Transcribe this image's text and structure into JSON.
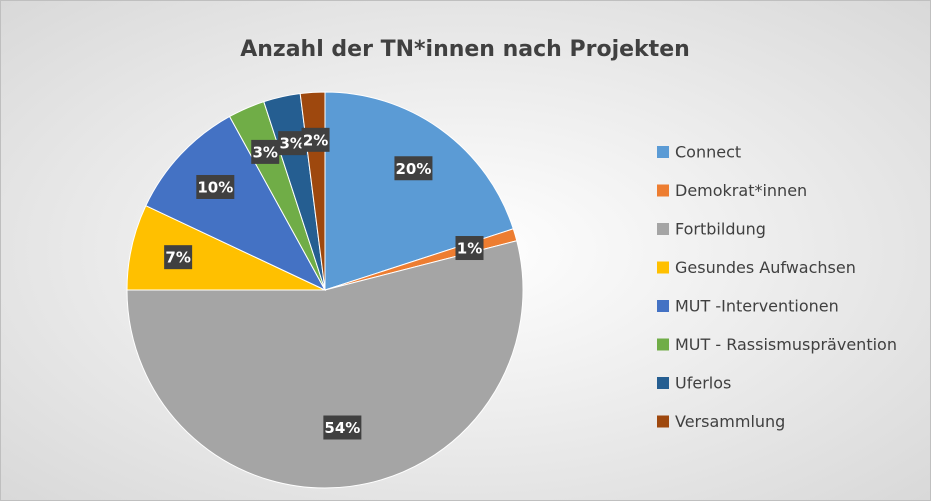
{
  "chart_data": {
    "type": "pie",
    "title": "Anzahl der TN*innen nach Projekten",
    "categories": [
      "Connect",
      "Demokrat*innen",
      "Fortbildung",
      "Gesundes Aufwachsen",
      "MUT -Interventionen",
      "MUT - Rassismusprävention",
      "Uferlos",
      "Versammlung"
    ],
    "values": [
      20,
      1,
      54,
      7,
      10,
      3,
      3,
      2
    ],
    "value_labels": [
      "20%",
      "1%",
      "54%",
      "7%",
      "10%",
      "3%",
      "3%",
      "2%"
    ],
    "colors": [
      "#5b9bd5",
      "#ed7d31",
      "#a5a5a5",
      "#ffc000",
      "#4472c4",
      "#70ad47",
      "#255e91",
      "#9e480e"
    ],
    "legend": "right"
  }
}
